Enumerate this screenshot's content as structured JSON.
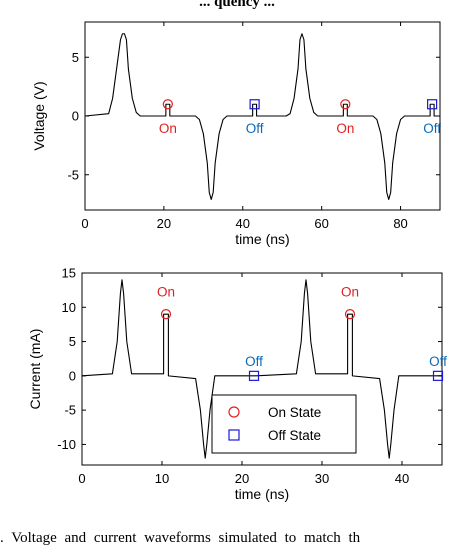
{
  "captions": {
    "top": "... quency ...",
    "bottom": ". Voltage and current waveforms simulated to match th"
  },
  "colors": {
    "on_marker": "#e02020",
    "off_marker": "#1a1ad8",
    "on_text": "#e02020",
    "off_text": "#0a68b8",
    "trace": "#000000"
  },
  "chart_data": [
    {
      "type": "line",
      "xlabel": "time (ns)",
      "ylabel": "Voltage (V)",
      "xlim": [
        0,
        90
      ],
      "ylim": [
        -8,
        8
      ],
      "xticks": [
        0,
        20,
        40,
        60,
        80
      ],
      "yticks": [
        -5,
        0,
        5
      ],
      "grid": false,
      "series": [
        {
          "x": [
            0,
            6,
            7,
            8,
            9,
            9.5,
            10,
            10.5,
            11,
            12,
            13,
            14,
            20.5,
            20.5,
            21.5,
            21.5,
            28,
            29,
            30,
            31,
            31.5,
            32,
            32.5,
            33,
            34,
            35,
            36,
            42.5,
            42.5,
            43.5,
            43.5,
            51,
            52,
            53,
            54,
            54.5,
            55,
            55.5,
            56,
            57,
            58,
            59,
            65.5,
            65.5,
            66.5,
            66.5,
            73,
            74,
            75,
            76,
            76.5,
            77,
            77.5,
            78,
            79,
            80,
            81,
            87.5,
            87.5,
            88.5,
            88.5,
            90
          ],
          "y": [
            0,
            0.2,
            1.5,
            4.0,
            6.5,
            7.0,
            7.0,
            6.5,
            4.0,
            1.5,
            0.3,
            0,
            0,
            1,
            1,
            0,
            0,
            -0.3,
            -1.5,
            -4.0,
            -6.5,
            -7.1,
            -6.5,
            -4.0,
            -1.5,
            -0.3,
            0,
            0,
            1,
            1,
            0,
            0,
            0.2,
            1.5,
            4.0,
            6.5,
            7.0,
            6.5,
            4.0,
            1.5,
            0.3,
            0,
            0,
            1,
            1,
            0,
            0,
            -0.3,
            -1.5,
            -4.0,
            -6.5,
            -7.1,
            -6.5,
            -4.0,
            -1.5,
            -0.3,
            0,
            0,
            1,
            1,
            0,
            0
          ]
        }
      ],
      "markers": [
        {
          "kind": "on",
          "x": 21,
          "y": 1
        },
        {
          "kind": "off",
          "x": 43,
          "y": 1
        },
        {
          "kind": "on",
          "x": 66,
          "y": 1
        },
        {
          "kind": "off",
          "x": 88,
          "y": 1
        }
      ],
      "annotations": [
        {
          "kind": "on",
          "text": "On",
          "x": 21,
          "y": -1.0
        },
        {
          "kind": "off",
          "text": "Off",
          "x": 43,
          "y": -1.0
        },
        {
          "kind": "on",
          "text": "On",
          "x": 66,
          "y": -1.0
        },
        {
          "kind": "off",
          "text": "Off",
          "x": 88,
          "y": -1.0
        }
      ]
    },
    {
      "type": "line",
      "xlabel": "time (ns)",
      "ylabel": "Current (mA)",
      "xlim": [
        0,
        45
      ],
      "ylim": [
        -13,
        15
      ],
      "xticks": [
        0,
        10,
        20,
        30,
        40
      ],
      "yticks": [
        -10,
        -5,
        0,
        5,
        10,
        15
      ],
      "grid": false,
      "series": [
        {
          "x": [
            0,
            3.8,
            4.4,
            4.8,
            5.0,
            5.2,
            5.6,
            6.2,
            10.2,
            10.2,
            10.8,
            10.8,
            14.2,
            14.8,
            15.2,
            15.4,
            15.6,
            16.0,
            16.6,
            21.2,
            21.2,
            21.8,
            21.8,
            26.8,
            27.4,
            27.8,
            28.0,
            28.2,
            28.6,
            29.2,
            33.2,
            33.2,
            33.8,
            33.8,
            37.2,
            37.8,
            38.2,
            38.4,
            38.6,
            39.0,
            39.6,
            44.2,
            44.2,
            44.8,
            44.8,
            45
          ],
          "y": [
            0,
            0.3,
            5,
            12,
            14,
            12,
            5,
            0.3,
            0.3,
            9,
            9,
            0,
            -0.4,
            -5,
            -10,
            -12,
            -10,
            -5,
            0,
            0,
            0,
            0,
            0,
            0.3,
            5,
            12,
            14,
            12,
            5,
            0.3,
            0.3,
            9,
            9,
            0,
            -0.4,
            -5,
            -10,
            -12,
            -10,
            -5,
            0,
            0,
            0,
            0,
            0,
            0
          ]
        }
      ],
      "markers": [
        {
          "kind": "on",
          "x": 10.5,
          "y": 9
        },
        {
          "kind": "off",
          "x": 21.5,
          "y": 0
        },
        {
          "kind": "on",
          "x": 33.5,
          "y": 9
        },
        {
          "kind": "off",
          "x": 44.5,
          "y": 0
        }
      ],
      "annotations": [
        {
          "kind": "on",
          "text": "On",
          "x": 10.5,
          "y": 12.3
        },
        {
          "kind": "off",
          "text": "Off",
          "x": 21.5,
          "y": 2.2
        },
        {
          "kind": "on",
          "text": "On",
          "x": 33.5,
          "y": 12.3
        },
        {
          "kind": "off",
          "text": "Off",
          "x": 44.5,
          "y": 2.2
        }
      ],
      "legend": {
        "position": "bottom-center",
        "entries": [
          {
            "kind": "on",
            "label": "On State"
          },
          {
            "kind": "off",
            "label": "Off State"
          }
        ]
      }
    }
  ]
}
